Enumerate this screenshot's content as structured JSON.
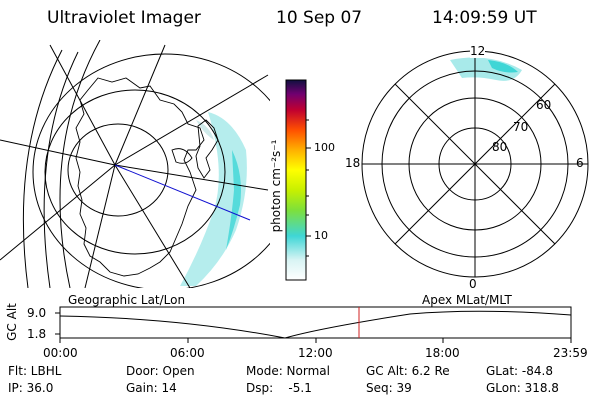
{
  "header": {
    "title": "Ultraviolet Imager",
    "date": "10 Sep 07",
    "time": "14:09:59 UT"
  },
  "colorbar": {
    "unit_label": "photon cm⁻²s⁻¹",
    "ticks": [
      "100",
      "10"
    ]
  },
  "polar_plot": {
    "mlt_labels": [
      "12",
      "18",
      "6",
      "0"
    ],
    "mlat_labels": [
      "60",
      "70",
      "80"
    ]
  },
  "panels": {
    "left_caption": "Geographic Lat/Lon",
    "right_caption": "Apex MLat/MLT"
  },
  "timeline": {
    "axis_label": "GC Alt",
    "y_ticks": [
      "9.0",
      "1.8"
    ],
    "x_ticks": [
      "00:00",
      "06:00",
      "12:00",
      "18:00",
      "23:59"
    ]
  },
  "status": {
    "flt": "Flt: LBHL",
    "ip": "IP: 36.0",
    "door": "Door: Open",
    "gain": "Gain: 14",
    "mode": "Mode: Normal",
    "dsp": "Dsp:    -5.1",
    "gc_alt": "GC Alt: 6.2 Re",
    "seq": "Seq: 39",
    "glat": "GLat: -84.8",
    "glon": "GLon: 318.8"
  },
  "colors": {
    "aurora": "#a8eaea",
    "aurora_bright": "#3fd6d6",
    "track": "#1010d0",
    "marker": "#d02020"
  }
}
